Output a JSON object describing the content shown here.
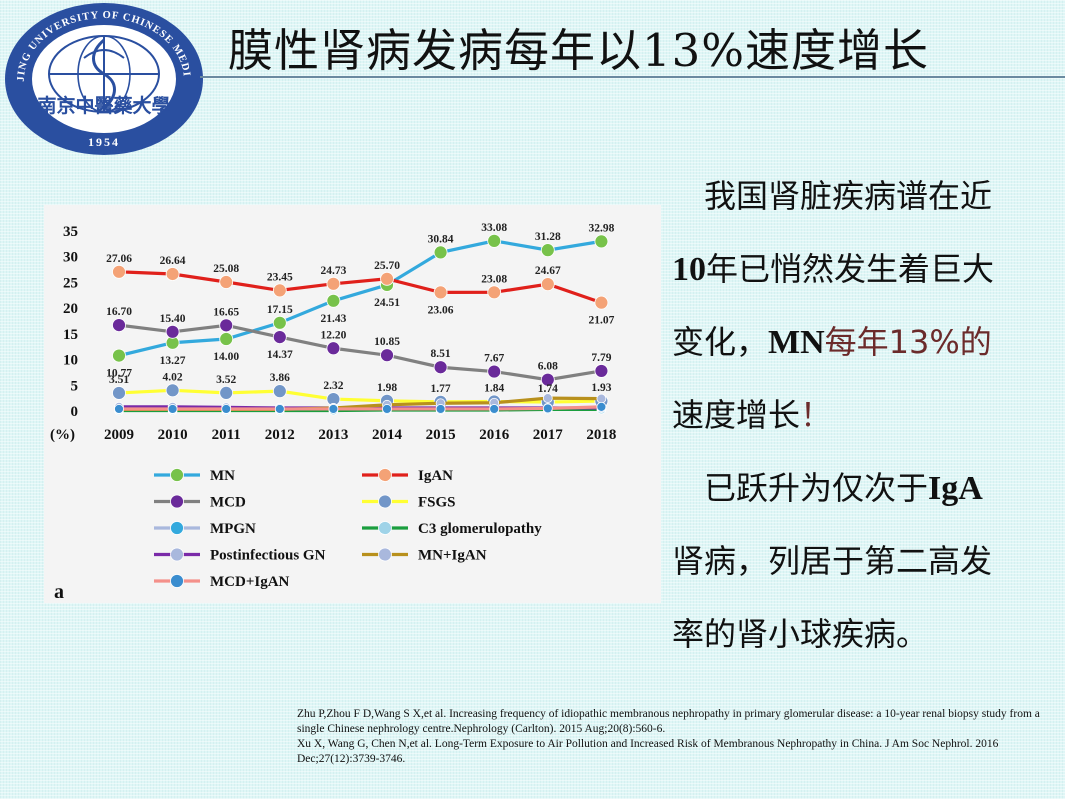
{
  "slide": {
    "title": "膜性肾病发病每年以13%速度增长",
    "logo": {
      "text_top": "NANJING UNIVERSITY OF CHINESE MEDICINE",
      "text_cn": "南京中醫藥大學",
      "year": "1954",
      "colors": {
        "blue": "#2a4fa0",
        "white": "#ffffff"
      }
    },
    "side_text": {
      "p1_a": "我国肾脏疾病谱在近",
      "p1_b": "10",
      "p1_c": "年已悄然发生着巨大",
      "p1_d": "变化，",
      "p1_e": "MN",
      "p1_f": "每年13%的",
      "p1_g": "速度增长",
      "p1_h": "！",
      "p2_a": "已跃升为仅次于",
      "p2_b": "IgA",
      "p2_c": "肾病，列居于第二高发",
      "p2_d": "率的肾小球疾病。"
    },
    "references": [
      "Zhu P,Zhou F D,Wang S X,et al. Increasing frequency of idiopathic membranous nephropathy in primary glomerular disease: a 10-year renal biopsy study from a single Chinese nephrology centre.Nephrology (Carlton). 2015 Aug;20(8):560-6.",
      "Xu X, Wang G, Chen N,et al. Long-Term Exposure to Air Pollution and Increased Risk of Membranous Nephropathy in China. J Am Soc Nephrol. 2016 Dec;27(12):3739-3746."
    ]
  },
  "chart_data": {
    "type": "line",
    "panel_label": "a",
    "y_unit_label": "(%)",
    "categories": [
      "2009",
      "2010",
      "2011",
      "2012",
      "2013",
      "2014",
      "2015",
      "2016",
      "2017",
      "2018"
    ],
    "ylim": [
      0,
      35
    ],
    "yticks": [
      "0",
      "5",
      "10",
      "15",
      "20",
      "25",
      "30",
      "35"
    ],
    "grid": false,
    "legend_position": "bottom",
    "series": [
      {
        "name": "MN",
        "line": "#33a9dd",
        "marker": "#77c24a",
        "labels": true,
        "label_pos": [
          "b",
          "b",
          "b",
          "t",
          "b",
          "b",
          "t",
          "t",
          "t",
          "t"
        ],
        "values": [
          10.77,
          13.27,
          14.0,
          17.15,
          21.43,
          24.51,
          30.84,
          33.08,
          31.28,
          32.98
        ]
      },
      {
        "name": "IgAN",
        "line": "#e0201b",
        "marker": "#f4a276",
        "labels": true,
        "label_pos": [
          "t",
          "t",
          "t",
          "t",
          "t",
          "t",
          "b",
          "t",
          "t",
          "b"
        ],
        "values": [
          27.06,
          26.64,
          25.08,
          23.45,
          24.73,
          25.7,
          23.06,
          23.08,
          24.67,
          21.07
        ]
      },
      {
        "name": "MCD",
        "line": "#808080",
        "marker": "#6a2a9a",
        "labels": true,
        "label_pos": [
          "t",
          "t",
          "t",
          "b",
          "t",
          "t",
          "t",
          "t",
          "t",
          "t"
        ],
        "values": [
          16.7,
          15.4,
          16.65,
          14.37,
          12.2,
          10.85,
          8.51,
          7.67,
          6.08,
          7.79
        ]
      },
      {
        "name": "FSGS",
        "line": "#ffff33",
        "marker": "#7296c8",
        "labels": true,
        "label_pos": [
          "t",
          "t",
          "t",
          "t",
          "t",
          "t",
          "t",
          "t",
          "t",
          "t"
        ],
        "values": [
          3.51,
          4.02,
          3.52,
          3.86,
          2.32,
          1.98,
          1.77,
          1.84,
          1.74,
          1.93
        ]
      },
      {
        "name": "MPGN",
        "line": "#a9b8dd",
        "marker": "#33a9dd",
        "labels": false,
        "values": [
          0.5,
          0.5,
          0.5,
          0.5,
          0.5,
          0.4,
          0.4,
          0.4,
          0.4,
          0.4
        ]
      },
      {
        "name": "C3 glomerulopathy",
        "line": "#1a9e3e",
        "marker": "#9fd3e8",
        "labels": false,
        "values": [
          0.1,
          0.1,
          0.1,
          0.1,
          0.1,
          0.2,
          0.2,
          0.2,
          0.3,
          0.3
        ]
      },
      {
        "name": "Postinfectious GN",
        "line": "#7a2aa8",
        "marker": "#a9b8dd",
        "labels": false,
        "values": [
          0.8,
          0.8,
          0.7,
          0.6,
          0.6,
          0.6,
          0.6,
          0.6,
          0.6,
          0.6
        ]
      },
      {
        "name": "MN+IgAN",
        "line": "#b8901c",
        "marker": "#a9b8dd",
        "labels": false,
        "values": [
          0.3,
          0.3,
          0.3,
          0.3,
          0.6,
          1.2,
          1.5,
          1.6,
          2.5,
          2.4
        ]
      },
      {
        "name": "MCD+IgAN",
        "line": "#f4908a",
        "marker": "#3a8dcf",
        "labels": false,
        "values": [
          0.4,
          0.4,
          0.4,
          0.4,
          0.4,
          0.4,
          0.4,
          0.4,
          0.5,
          0.8
        ]
      }
    ]
  }
}
